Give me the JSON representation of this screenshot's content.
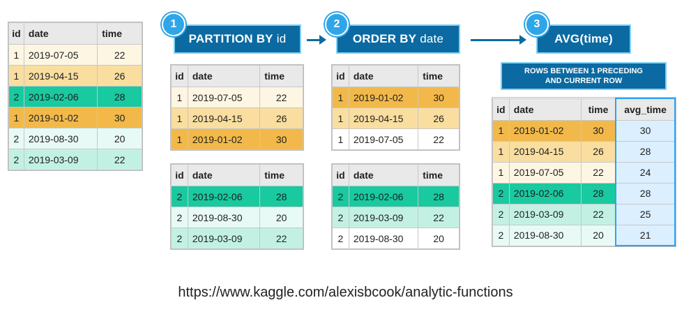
{
  "headers": {
    "id": "id",
    "date": "date",
    "time": "time",
    "avg_time": "avg_time"
  },
  "steps": [
    {
      "number": "1",
      "keyword": "PARTITION BY",
      "arg": "id"
    },
    {
      "number": "2",
      "keyword": "ORDER BY",
      "arg": "date"
    },
    {
      "number": "3",
      "label": "AVG(time)"
    }
  ],
  "rows_frame": {
    "line1": "ROWS BETWEEN 1 PRECEDING",
    "line2": "AND CURRENT ROW"
  },
  "source_table": [
    {
      "id": "1",
      "date": "2019-07-05",
      "time": "22",
      "color": "#fdf6e3"
    },
    {
      "id": "1",
      "date": "2019-04-15",
      "time": "26",
      "color": "#f9dea0"
    },
    {
      "id": "2",
      "date": "2019-02-06",
      "time": "28",
      "color": "#19c9a0"
    },
    {
      "id": "1",
      "date": "2019-01-02",
      "time": "30",
      "color": "#f2b94a"
    },
    {
      "id": "2",
      "date": "2019-08-30",
      "time": "20",
      "color": "#e8faf5"
    },
    {
      "id": "2",
      "date": "2019-03-09",
      "time": "22",
      "color": "#c2f1e4"
    }
  ],
  "partition_tables": [
    [
      {
        "id": "1",
        "date": "2019-07-05",
        "time": "22"
      },
      {
        "id": "1",
        "date": "2019-04-15",
        "time": "26"
      },
      {
        "id": "1",
        "date": "2019-01-02",
        "time": "30"
      }
    ],
    [
      {
        "id": "2",
        "date": "2019-02-06",
        "time": "28"
      },
      {
        "id": "2",
        "date": "2019-08-30",
        "time": "20"
      },
      {
        "id": "2",
        "date": "2019-03-09",
        "time": "22"
      }
    ]
  ],
  "ordered_tables": [
    [
      {
        "id": "1",
        "date": "2019-01-02",
        "time": "30"
      },
      {
        "id": "1",
        "date": "2019-04-15",
        "time": "26"
      },
      {
        "id": "1",
        "date": "2019-07-05",
        "time": "22"
      }
    ],
    [
      {
        "id": "2",
        "date": "2019-02-06",
        "time": "28"
      },
      {
        "id": "2",
        "date": "2019-03-09",
        "time": "22"
      },
      {
        "id": "2",
        "date": "2019-08-30",
        "time": "20"
      }
    ]
  ],
  "result_table": [
    {
      "id": "1",
      "date": "2019-01-02",
      "time": "30",
      "avg_time": "30"
    },
    {
      "id": "1",
      "date": "2019-04-15",
      "time": "26",
      "avg_time": "28"
    },
    {
      "id": "1",
      "date": "2019-07-05",
      "time": "22",
      "avg_time": "24"
    },
    {
      "id": "2",
      "date": "2019-02-06",
      "time": "28",
      "avg_time": "28"
    },
    {
      "id": "2",
      "date": "2019-03-09",
      "time": "22",
      "avg_time": "25"
    },
    {
      "id": "2",
      "date": "2019-08-30",
      "time": "20",
      "avg_time": "21"
    }
  ],
  "source_url": "https://www.kaggle.com/alexisbcook/analytic-functions"
}
